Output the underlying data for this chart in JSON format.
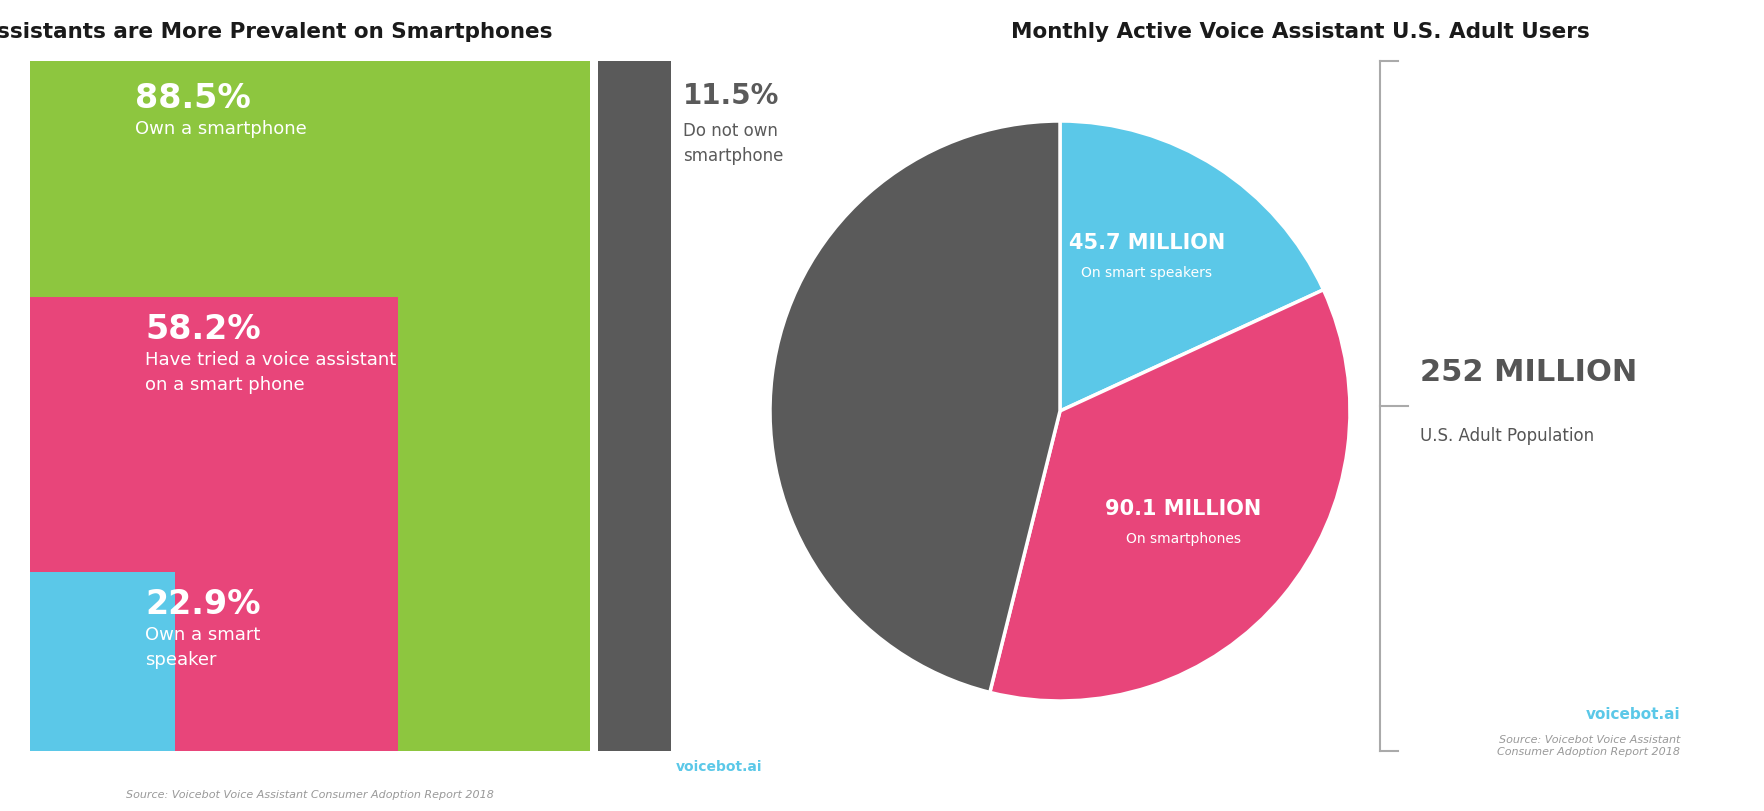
{
  "left_title": "Voice Assistants are More Prevalent on Smartphones",
  "right_title": "Monthly Active Voice Assistant U.S. Adult Users",
  "green_pct": 88.5,
  "green_label1": "88.5%",
  "green_label2": "Own a smartphone",
  "green_color": "#8DC63F",
  "pink_pct": 58.2,
  "pink_label1": "58.2%",
  "pink_label2": "Have tried a voice assistant\non a smart phone",
  "pink_color": "#E8457A",
  "blue_pct": 22.9,
  "blue_label1": "22.9%",
  "blue_label2": "Own a smart\nspeaker",
  "blue_color": "#5BC8E8",
  "gray_pct": 11.5,
  "gray_label1": "11.5%",
  "gray_label2": "Do not own\nsmartphone",
  "gray_color": "#5A5A5A",
  "pie_values": [
    45.7,
    90.1,
    116.2
  ],
  "pie_colors": [
    "#5BC8E8",
    "#E8457A",
    "#5A5A5A"
  ],
  "pie_label1_big": "45.7 MILLION",
  "pie_label1_small": "On smart speakers",
  "pie_label2_big": "90.1 MILLION",
  "pie_label2_small": "On smartphones",
  "pop_big": "252 MILLION",
  "pop_small": "U.S. Adult Population",
  "source_left": "Source: Voicebot Voice Assistant Consumer Adoption Report 2018",
  "source_right": "Source: Voicebot Voice Assistant\nConsumer Adoption Report 2018",
  "voicebot_color": "#5BC8E8",
  "bg_color": "#FFFFFF",
  "text_white": "#FFFFFF",
  "text_dark": "#555555"
}
